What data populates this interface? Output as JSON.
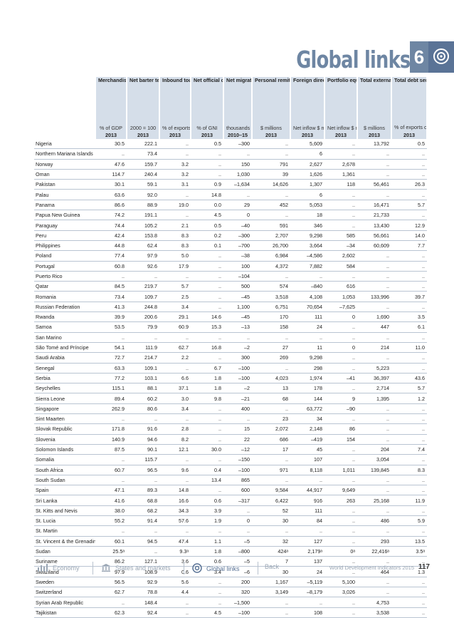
{
  "header": {
    "title": "Global links",
    "section_number": "6"
  },
  "columns": [
    {
      "head": "Merchandise trade",
      "unit": "% of GDP",
      "year": "2013"
    },
    {
      "head": "Net barter terms of trade index",
      "unit": "2000 = 100",
      "year": "2013"
    },
    {
      "head": "Inbound tourism expenditure",
      "unit": "% of exports",
      "year": "2013"
    },
    {
      "head": "Net official development assistance",
      "unit": "% of GNI",
      "year": "2013"
    },
    {
      "head": "Net migration",
      "unit": "thousands",
      "year": "2010–15"
    },
    {
      "head": "Personal remittances, received",
      "unit": "$ millions",
      "year": "2013"
    },
    {
      "head": "Foreign direct investment",
      "unit": "Net inflow $ millions",
      "year": "2013"
    },
    {
      "head": "Portfolio equity",
      "unit": "Net inflow $ millions",
      "year": "2013"
    },
    {
      "head": "Total external debt stock",
      "unit": "$ millions",
      "year": "2013"
    },
    {
      "head": "Total debt service",
      "subhead": "% of exports of goods, services, and primary income",
      "unit": "",
      "year": "2013"
    }
  ],
  "rows": [
    [
      "Nigeria",
      "30.5",
      "222.1",
      "..",
      "0.5",
      "–300",
      "..",
      "5,609",
      "..",
      "13,792",
      "0.5"
    ],
    [
      "Northern Mariana Islands",
      "..",
      "73.4",
      "..",
      "..",
      "..",
      "..",
      "6",
      "..",
      "..",
      ".."
    ],
    [
      "Norway",
      "47.6",
      "159.7",
      "3.2",
      "..",
      "150",
      "791",
      "2,627",
      "2,678",
      "..",
      ".."
    ],
    [
      "Oman",
      "114.7",
      "240.4",
      "3.2",
      "..",
      "1,030",
      "39",
      "1,626",
      "1,361",
      "..",
      ".."
    ],
    [
      "Pakistan",
      "30.1",
      "59.1",
      "3.1",
      "0.9",
      "–1,634",
      "14,626",
      "1,307",
      "118",
      "56,461",
      "26.3"
    ],
    [
      "Palau",
      "63.6",
      "92.0",
      "..",
      "14.8",
      "..",
      "..",
      "6",
      "..",
      "..",
      ".."
    ],
    [
      "Panama",
      "86.6",
      "88.9",
      "19.0",
      "0.0",
      "29",
      "452",
      "5,053",
      "..",
      "16,471",
      "5.7"
    ],
    [
      "Papua New Guinea",
      "74.2",
      "191.1",
      "..",
      "4.5",
      "0",
      "..",
      "18",
      "..",
      "21,733",
      ".."
    ],
    [
      "Paraguay",
      "74.4",
      "105.2",
      "2.1",
      "0.5",
      "–40",
      "591",
      "346",
      "..",
      "13,430",
      "12.9"
    ],
    [
      "Peru",
      "42.4",
      "153.8",
      "8.3",
      "0.2",
      "–300",
      "2,707",
      "9,298",
      "585",
      "56,661",
      "14.0"
    ],
    [
      "Philippines",
      "44.8",
      "62.4",
      "8.3",
      "0.1",
      "–700",
      "26,700",
      "3,664",
      "–34",
      "60,609",
      "7.7"
    ],
    [
      "Poland",
      "77.4",
      "97.9",
      "5.0",
      "..",
      "–38",
      "6,984",
      "–4,586",
      "2,602",
      "..",
      ".."
    ],
    [
      "Portugal",
      "60.8",
      "92.6",
      "17.9",
      "..",
      "100",
      "4,372",
      "7,882",
      "584",
      "..",
      ".."
    ],
    [
      "Puerto Rico",
      "..",
      "..",
      "..",
      "..",
      "–104",
      "..",
      "..",
      "..",
      "..",
      ".."
    ],
    [
      "Qatar",
      "84.5",
      "219.7",
      "5.7",
      "..",
      "500",
      "574",
      "–840",
      "616",
      "..",
      ".."
    ],
    [
      "Romania",
      "73.4",
      "109.7",
      "2.5",
      "..",
      "–45",
      "3,518",
      "4,108",
      "1,053",
      "133,996",
      "39.7"
    ],
    [
      "Russian Federation",
      "41.3",
      "244.8",
      "3.4",
      "..",
      "1,100",
      "6,751",
      "70,654",
      "–7,625",
      "..",
      ".."
    ],
    [
      "Rwanda",
      "39.9",
      "200.6",
      "29.1",
      "14.6",
      "–45",
      "170",
      "111",
      "0",
      "1,690",
      "3.5"
    ],
    [
      "Samoa",
      "53.5",
      "79.9",
      "60.9",
      "15.3",
      "–13",
      "158",
      "24",
      "..",
      "447",
      "6.1"
    ],
    [
      "San Marino",
      "..",
      "..",
      "..",
      "..",
      "..",
      "..",
      "..",
      "..",
      "..",
      ".."
    ],
    [
      "São Tomé and Príncipe",
      "54.1",
      "111.9",
      "62.7",
      "16.8",
      "–2",
      "27",
      "11",
      "0",
      "214",
      "11.0"
    ],
    [
      "Saudi Arabia",
      "72.7",
      "214.7",
      "2.2",
      "..",
      "300",
      "269",
      "9,298",
      "..",
      "..",
      ".."
    ],
    [
      "Senegal",
      "63.3",
      "109.1",
      "..",
      "6.7",
      "–100",
      "..",
      "298",
      "..",
      "5,223",
      ".."
    ],
    [
      "Serbia",
      "77.2",
      "103.1",
      "6.6",
      "1.8",
      "–100",
      "4,023",
      "1,974",
      "–41",
      "36,397",
      "43.6"
    ],
    [
      "Seychelles",
      "115.1",
      "88.1",
      "37.1",
      "1.8",
      "–2",
      "13",
      "178",
      "..",
      "2,714",
      "5.7"
    ],
    [
      "Sierra Leone",
      "89.4",
      "60.2",
      "3.0",
      "9.8",
      "–21",
      "68",
      "144",
      "9",
      "1,395",
      "1.2"
    ],
    [
      "Singapore",
      "262.9",
      "80.6",
      "3.4",
      "..",
      "400",
      "..",
      "63,772",
      "–90",
      "..",
      ".."
    ],
    [
      "Sint Maarten",
      "..",
      "..",
      "..",
      "..",
      "..",
      "23",
      "34",
      "..",
      "..",
      ".."
    ],
    [
      "Slovak Republic",
      "171.8",
      "91.6",
      "2.8",
      "..",
      "15",
      "2,072",
      "2,148",
      "86",
      "..",
      ".."
    ],
    [
      "Slovenia",
      "140.9",
      "94.6",
      "8.2",
      "..",
      "22",
      "686",
      "–419",
      "154",
      "..",
      ".."
    ],
    [
      "Solomon Islands",
      "87.5",
      "90.1",
      "12.1",
      "30.0",
      "–12",
      "17",
      "45",
      "..",
      "204",
      "7.4"
    ],
    [
      "Somalia",
      "..",
      "115.7",
      "..",
      "..",
      "–150",
      "..",
      "107",
      "..",
      "3,054",
      ".."
    ],
    [
      "South Africa",
      "60.7",
      "96.5",
      "9.6",
      "0.4",
      "–100",
      "971",
      "8,118",
      "1,011",
      "139,845",
      "8.3"
    ],
    [
      "South Sudan",
      "..",
      "..",
      "..",
      "13.4",
      "865",
      "..",
      "..",
      "..",
      "..",
      ".."
    ],
    [
      "Spain",
      "47.1",
      "89.3",
      "14.8",
      "..",
      "600",
      "9,584",
      "44,917",
      "9,649",
      "..",
      ".."
    ],
    [
      "Sri Lanka",
      "41.6",
      "68.8",
      "16.6",
      "0.6",
      "–317",
      "6,422",
      "916",
      "263",
      "25,168",
      "11.9"
    ],
    [
      "St. Kitts and Nevis",
      "38.0",
      "68.2",
      "34.3",
      "3.9",
      "..",
      "52",
      "111",
      "..",
      "..",
      ".."
    ],
    [
      "St. Lucia",
      "55.2",
      "91.4",
      "57.6",
      "1.9",
      "0",
      "30",
      "84",
      "..",
      "486",
      "5.9"
    ],
    [
      "St. Martin",
      "..",
      "..",
      "..",
      "..",
      "..",
      "..",
      "..",
      "..",
      "..",
      ".."
    ],
    [
      "St. Vincent & the Grenadines",
      "60.1",
      "94.5",
      "47.4",
      "1.1",
      "–5",
      "32",
      "127",
      "..",
      "293",
      "13.5"
    ],
    [
      "Sudan",
      "25.5ᵃ",
      "..",
      "9.3ᵃ",
      "1.8",
      "–800",
      "424ᵃ",
      "2,179ᵃ",
      "0ᵃ",
      "22,416ᵃ",
      "3.5ᵃ"
    ],
    [
      "Suriname",
      "86.2",
      "127.1",
      "3.6",
      "0.6",
      "–5",
      "7",
      "137",
      "..",
      "..",
      ".."
    ],
    [
      "Swaziland",
      "97.9",
      "108.9",
      "0.6",
      "3.4",
      "–6",
      "30",
      "24",
      "..",
      "464",
      "1.3"
    ],
    [
      "Sweden",
      "56.5",
      "92.9",
      "5.6",
      "..",
      "200",
      "1,167",
      "–5,119",
      "5,100",
      "..",
      ".."
    ],
    [
      "Switzerland",
      "62.7",
      "78.8",
      "4.4",
      "..",
      "320",
      "3,149",
      "–8,179",
      "3,026",
      "..",
      ".."
    ],
    [
      "Syrian Arab Republic",
      "..",
      "148.4",
      "..",
      "..",
      "–1,500",
      "..",
      "..",
      "..",
      "4,753",
      ".."
    ],
    [
      "Tajikistan",
      "62.3",
      "92.4",
      "..",
      "4.5",
      "–100",
      "..",
      "108",
      "..",
      "3,538",
      ".."
    ]
  ],
  "footer": {
    "nav": [
      "Economy",
      "States and markets",
      "Global links",
      "Back"
    ],
    "publication": "World Development Indicators 2015",
    "page_number": "117"
  }
}
